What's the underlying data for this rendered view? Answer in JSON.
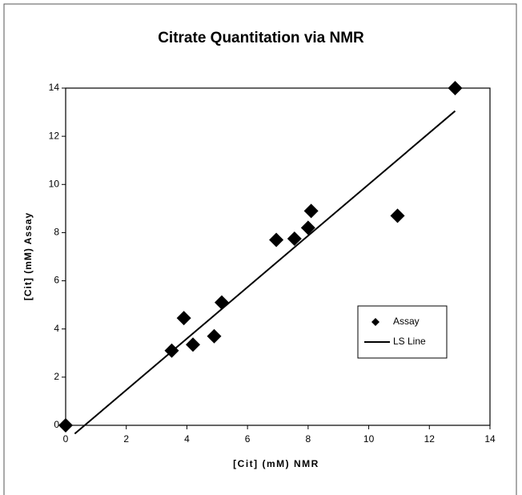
{
  "chart_data": {
    "type": "scatter",
    "title": "Citrate Quantitation via NMR",
    "x_label": "[Cit] (mM) NMR",
    "y_label": "[Cit] (mM) Assay",
    "xlim": [
      0,
      14
    ],
    "ylim": [
      0,
      14
    ],
    "xticks": [
      0,
      2,
      4,
      6,
      8,
      10,
      12,
      14
    ],
    "yticks": [
      0,
      2,
      4,
      6,
      8,
      10,
      12,
      14
    ],
    "legend": "right",
    "series": [
      {
        "name": "Assay",
        "type": "scatter",
        "color": "#000000",
        "x": [
          0,
          3.5,
          3.9,
          4.2,
          4.9,
          5.15,
          6.95,
          7.55,
          8.0,
          8.1,
          10.95,
          12.85
        ],
        "values": [
          0,
          3.1,
          4.45,
          3.35,
          3.7,
          5.1,
          7.7,
          7.75,
          8.2,
          8.9,
          8.7,
          14
        ]
      },
      {
        "name": "LS Line",
        "type": "line",
        "color": "#000000",
        "x": [
          0.3,
          12.85
        ],
        "values": [
          -0.35,
          13.05
        ]
      }
    ]
  }
}
